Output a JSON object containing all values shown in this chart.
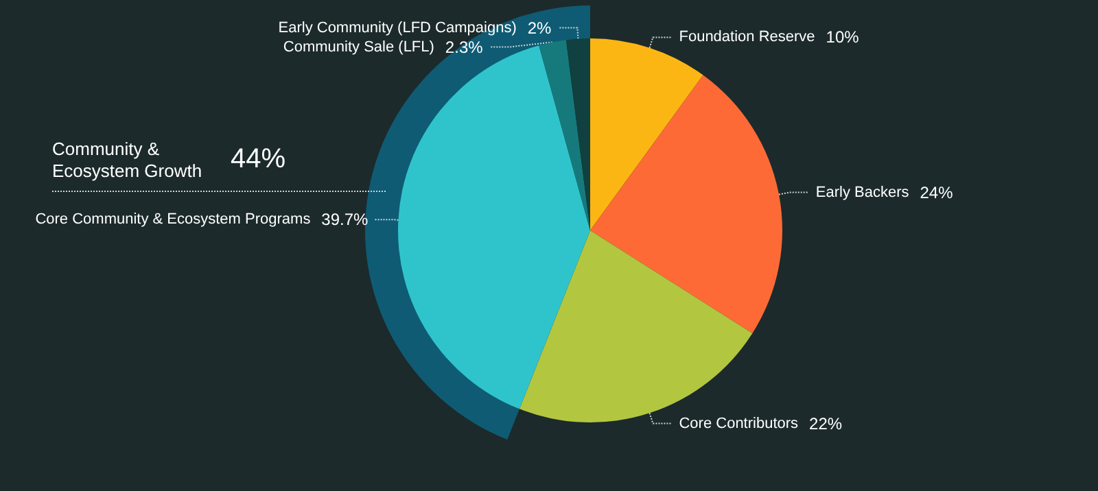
{
  "chart_data": {
    "type": "pie",
    "legend": false,
    "categories": [
      "Foundation Reserve",
      "Early Backers",
      "Core Contributors",
      "Core Community & Ecosystem Programs",
      "Community Sale (LFL)",
      "Early Community (LFD Campaigns)"
    ],
    "values": [
      10,
      24,
      22,
      39.7,
      2.3,
      2
    ],
    "value_labels": [
      "10%",
      "24%",
      "22%",
      "39.7%",
      "2.3%",
      "2%"
    ],
    "colors": [
      "#fcb614",
      "#fe6a36",
      "#b3c640",
      "#2fc4cc",
      "#167a7c",
      "#10403f"
    ],
    "annotations": [
      "Community & Ecosystem Growth 44%"
    ]
  }
}
